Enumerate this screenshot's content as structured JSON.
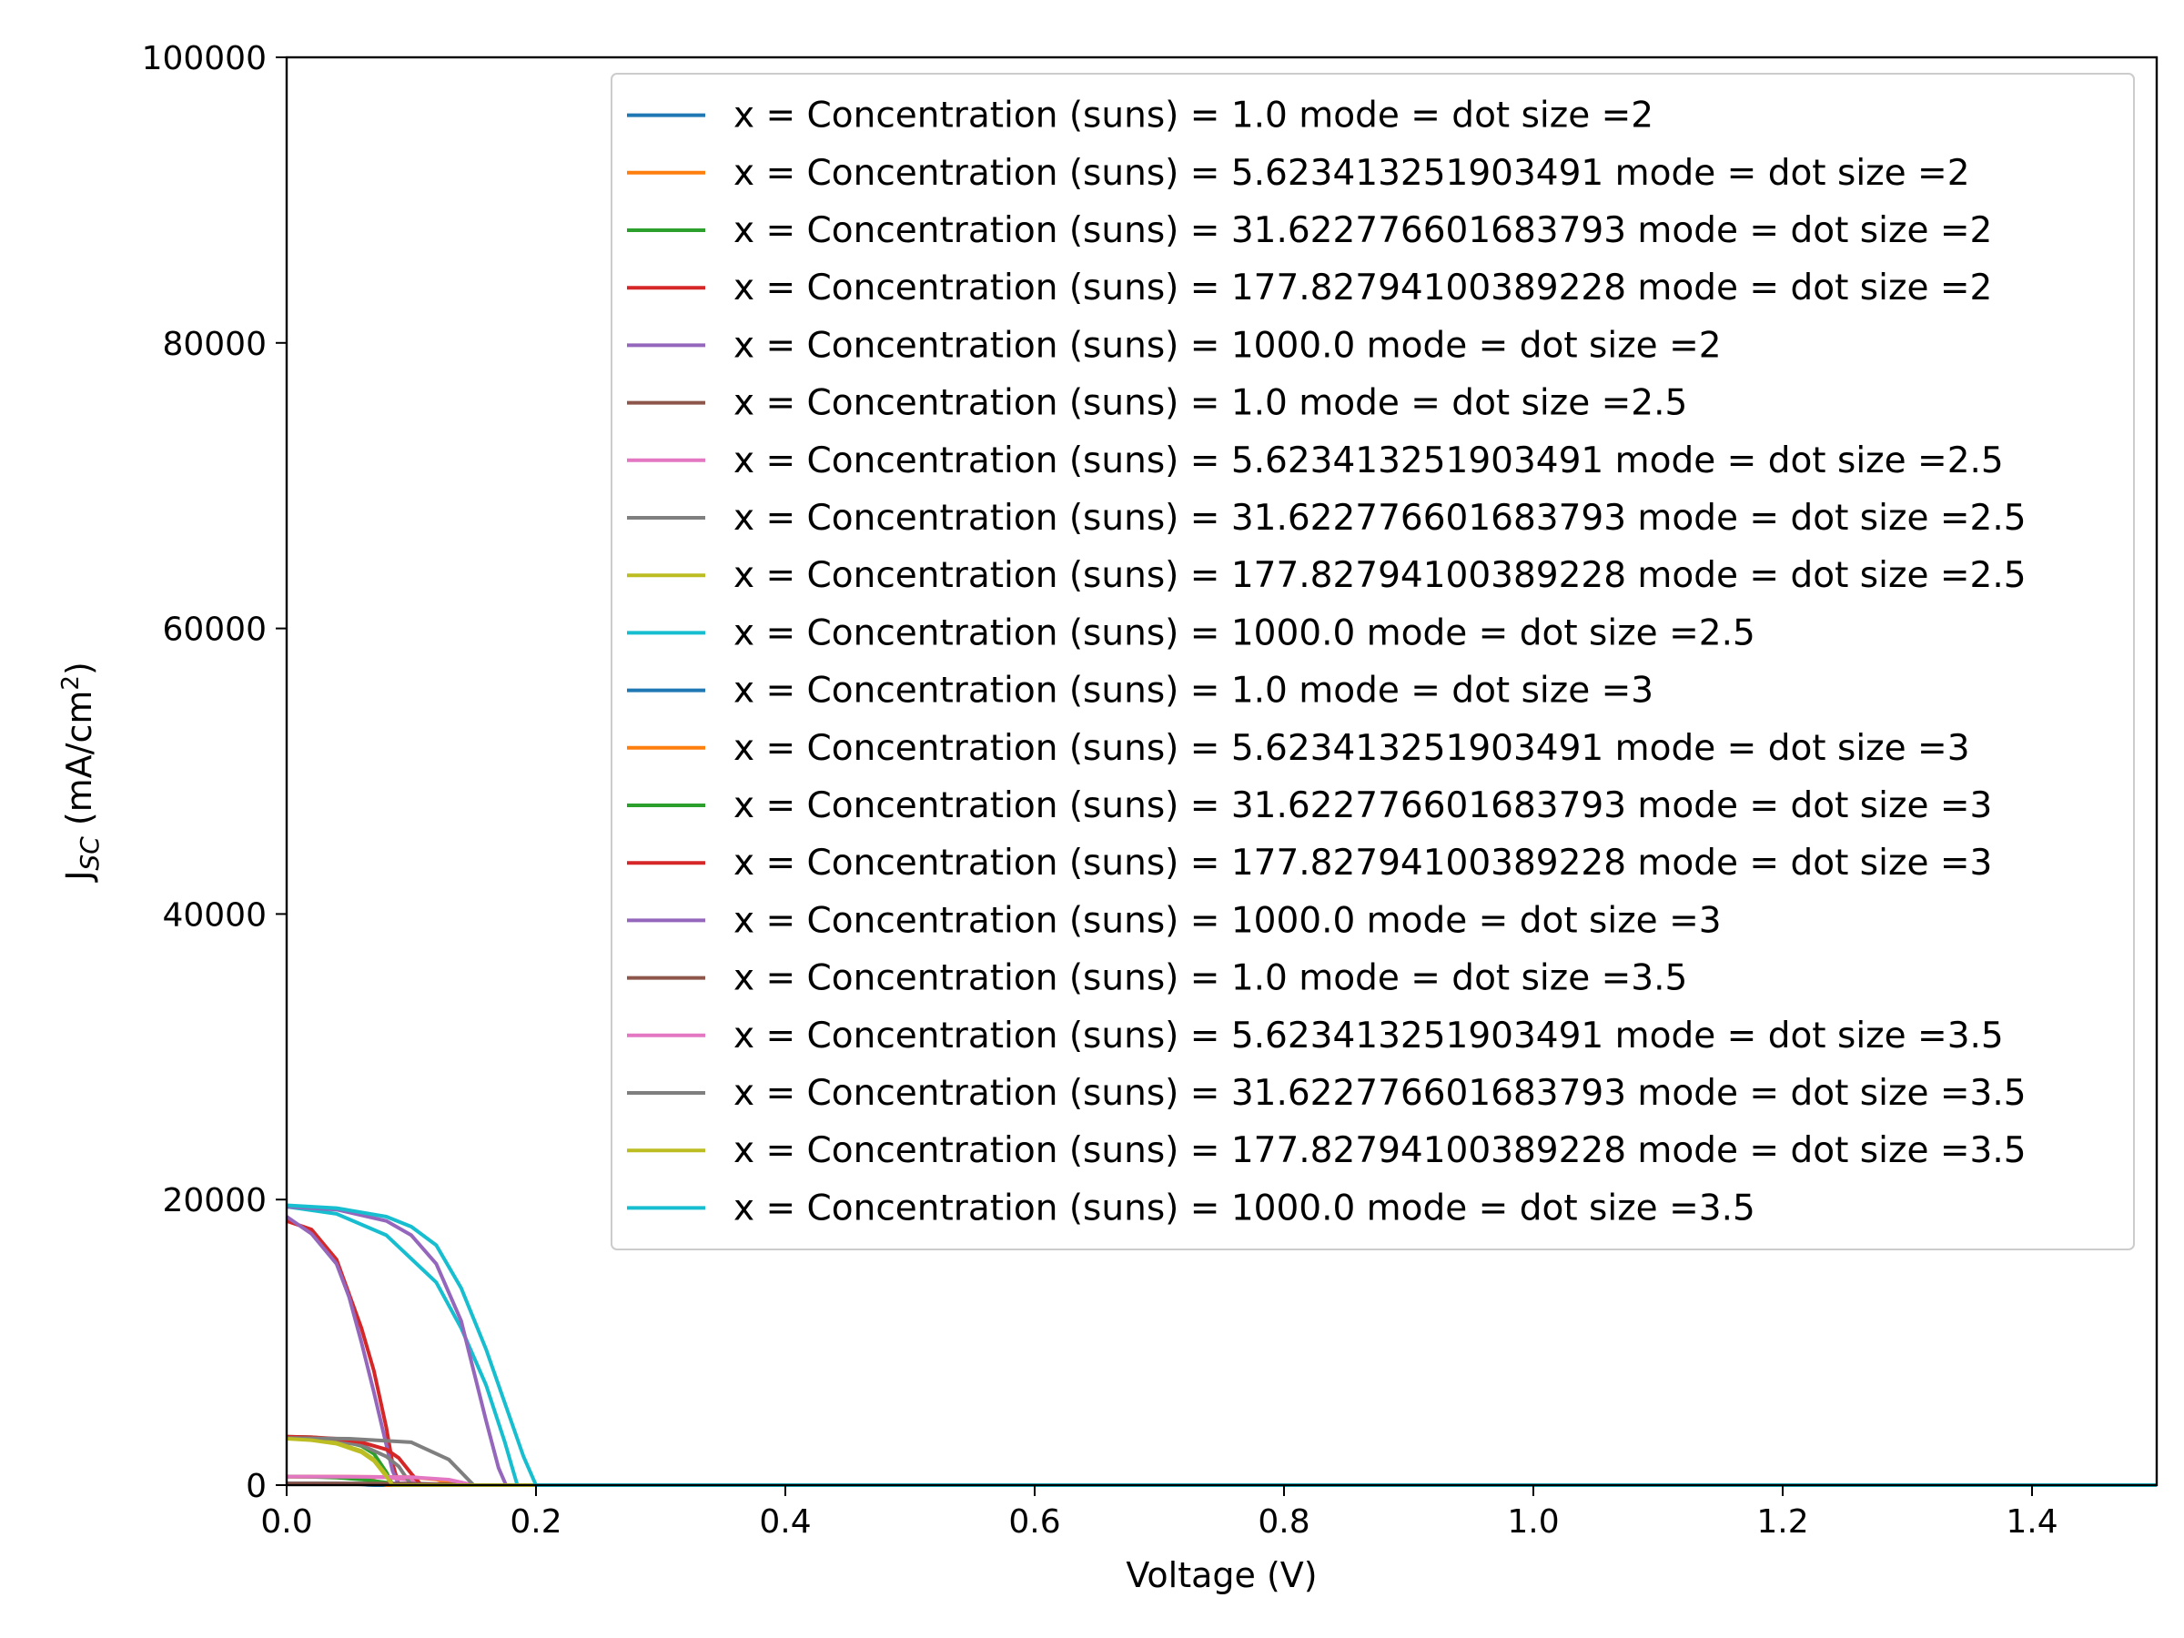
{
  "chart_data": {
    "type": "line",
    "title": "",
    "xlabel": "Voltage (V)",
    "ylabel": "J_SC (mA/cm²)",
    "ylabel_parts": {
      "main": "J",
      "sub": "SC",
      "rest": " (mA/cm",
      "sup": "2",
      "end": ")"
    },
    "xlim": [
      0,
      1.5
    ],
    "ylim": [
      0,
      100000
    ],
    "xticks": [
      0.0,
      0.2,
      0.4,
      0.6,
      0.8,
      1.0,
      1.2,
      1.4
    ],
    "xtick_labels": [
      "0.0",
      "0.2",
      "0.4",
      "0.6",
      "0.8",
      "1.0",
      "1.2",
      "1.4"
    ],
    "yticks": [
      0,
      20000,
      40000,
      60000,
      80000,
      100000
    ],
    "ytick_labels": [
      "0",
      "20000",
      "40000",
      "60000",
      "80000",
      "100000"
    ],
    "grid": false,
    "legend_placement": "top-right",
    "series": [
      {
        "name": "x = Concentration (suns) = 1.0 mode = dot size =2",
        "color": "#1f77b4",
        "x": [
          0,
          0.02,
          0.04,
          0.05,
          0.06,
          0.065,
          0.07
        ],
        "y": [
          110,
          108,
          100,
          85,
          55,
          20,
          0
        ]
      },
      {
        "name": "x = Concentration (suns) = 5.623413251903491 mode = dot size =2",
        "color": "#ff7f0e",
        "x": [
          0,
          0.02,
          0.04,
          0.06,
          0.07,
          0.075,
          0.08
        ],
        "y": [
          600,
          590,
          560,
          470,
          320,
          120,
          0
        ]
      },
      {
        "name": "x = Concentration (suns) = 31.622776601683793 mode = dot size =2",
        "color": "#2ca02c",
        "x": [
          0,
          0.02,
          0.04,
          0.06,
          0.07,
          0.08,
          0.085
        ],
        "y": [
          3400,
          3350,
          3200,
          2750,
          2200,
          900,
          0
        ]
      },
      {
        "name": "x = Concentration (suns) = 177.82794100389228 mode = dot size =2",
        "color": "#d62728",
        "x": [
          0,
          0.02,
          0.04,
          0.06,
          0.07,
          0.08,
          0.085,
          0.09
        ],
        "y": [
          18500,
          17900,
          15800,
          11000,
          8000,
          4000,
          1500,
          0
        ]
      },
      {
        "name": "x = Concentration (suns) = 1000.0 mode = dot size =2",
        "color": "#9467bd",
        "x": [
          0,
          0.02,
          0.04,
          0.05,
          0.06,
          0.07,
          0.08,
          0.085,
          0.09
        ],
        "y": [
          18800,
          17600,
          15500,
          13200,
          10000,
          6500,
          2800,
          1000,
          0
        ]
      },
      {
        "name": "x = Concentration (suns) = 1.0 mode = dot size =2.5",
        "color": "#8c564b",
        "x": [
          0,
          0.04,
          0.08,
          0.1,
          0.11
        ],
        "y": [
          110,
          108,
          100,
          60,
          0
        ]
      },
      {
        "name": "x = Concentration (suns) = 5.623413251903491 mode = dot size =2.5",
        "color": "#e377c2",
        "x": [
          0,
          0.04,
          0.08,
          0.1,
          0.11
        ],
        "y": [
          600,
          590,
          550,
          350,
          0
        ]
      },
      {
        "name": "x = Concentration (suns) = 31.622776601683793 mode = dot size =2.5",
        "color": "#7f7f7f",
        "x": [
          0,
          0.03,
          0.06,
          0.08,
          0.09,
          0.1
        ],
        "y": [
          3300,
          3200,
          2800,
          2000,
          1300,
          0
        ]
      },
      {
        "name": "x = Concentration (suns) = 177.82794100389228 mode = dot size =2.5",
        "color": "#bcbd22",
        "x": [
          0,
          0.02,
          0.04,
          0.06,
          0.07,
          0.08,
          0.085
        ],
        "y": [
          3300,
          3200,
          2950,
          2400,
          1800,
          700,
          0
        ]
      },
      {
        "name": "x = Concentration (suns) = 1000.0 mode = dot size =2.5",
        "color": "#17becf",
        "x": [
          0,
          0.04,
          0.08,
          0.12,
          0.14,
          0.16,
          0.175,
          0.185
        ],
        "y": [
          19500,
          19000,
          17500,
          14200,
          11000,
          7000,
          3000,
          0
        ]
      },
      {
        "name": "x = Concentration (suns) = 1.0 mode = dot size =3",
        "color": "#1f77b4",
        "x": [
          0,
          0.05,
          0.1,
          0.12,
          0.13
        ],
        "y": [
          110,
          108,
          100,
          60,
          0
        ]
      },
      {
        "name": "x = Concentration (suns) = 5.623413251903491 mode = dot size =3",
        "color": "#ff7f0e",
        "x": [
          0,
          0.05,
          0.1,
          0.12,
          0.135
        ],
        "y": [
          600,
          590,
          560,
          400,
          0
        ]
      },
      {
        "name": "x = Concentration (suns) = 31.622776601683793 mode = dot size =3",
        "color": "#2ca02c",
        "x": [
          0,
          0.02,
          0.04,
          0.06,
          0.08,
          0.09
        ],
        "y": [
          600,
          580,
          520,
          400,
          180,
          0
        ]
      },
      {
        "name": "x = Concentration (suns) = 177.82794100389228 mode = dot size =3",
        "color": "#d62728",
        "x": [
          0,
          0.02,
          0.04,
          0.06,
          0.08,
          0.09,
          0.1,
          0.108
        ],
        "y": [
          3400,
          3350,
          3250,
          3000,
          2500,
          1900,
          800,
          0
        ]
      },
      {
        "name": "x = Concentration (suns) = 1000.0 mode = dot size =3",
        "color": "#9467bd",
        "x": [
          0,
          0.04,
          0.08,
          0.1,
          0.12,
          0.14,
          0.15,
          0.16,
          0.17,
          0.176
        ],
        "y": [
          19500,
          19300,
          18500,
          17500,
          15500,
          11500,
          8000,
          4500,
          1200,
          0
        ]
      },
      {
        "name": "x = Concentration (suns) = 1.0 mode = dot size =3.5",
        "color": "#8c564b",
        "x": [
          0,
          0.05,
          0.1,
          0.13,
          0.15
        ],
        "y": [
          110,
          108,
          100,
          60,
          0
        ]
      },
      {
        "name": "x = Concentration (suns) = 5.623413251903491 mode = dot size =3.5",
        "color": "#e377c2",
        "x": [
          0,
          0.05,
          0.1,
          0.13,
          0.15
        ],
        "y": [
          600,
          590,
          560,
          380,
          0
        ]
      },
      {
        "name": "x = Concentration (suns) = 31.622776601683793 mode = dot size =3.5",
        "color": "#7f7f7f",
        "x": [
          0,
          0.05,
          0.1,
          0.13,
          0.15
        ],
        "y": [
          3300,
          3250,
          3000,
          1800,
          0
        ]
      },
      {
        "name": "x = Concentration (suns) = 177.82794100389228 mode = dot size =3.5",
        "color": "#bcbd22",
        "x": [
          0,
          0.02,
          0.04,
          0.06,
          0.07,
          0.08,
          0.085
        ],
        "y": [
          3250,
          3150,
          2900,
          2300,
          1700,
          600,
          0
        ]
      },
      {
        "name": "x = Concentration (suns) = 1000.0 mode = dot size =3.5",
        "color": "#17becf",
        "x": [
          0,
          0.04,
          0.08,
          0.1,
          0.12,
          0.14,
          0.16,
          0.18,
          0.19,
          0.2
        ],
        "y": [
          19600,
          19400,
          18800,
          18100,
          16800,
          13800,
          9500,
          4500,
          2000,
          0
        ]
      }
    ]
  }
}
